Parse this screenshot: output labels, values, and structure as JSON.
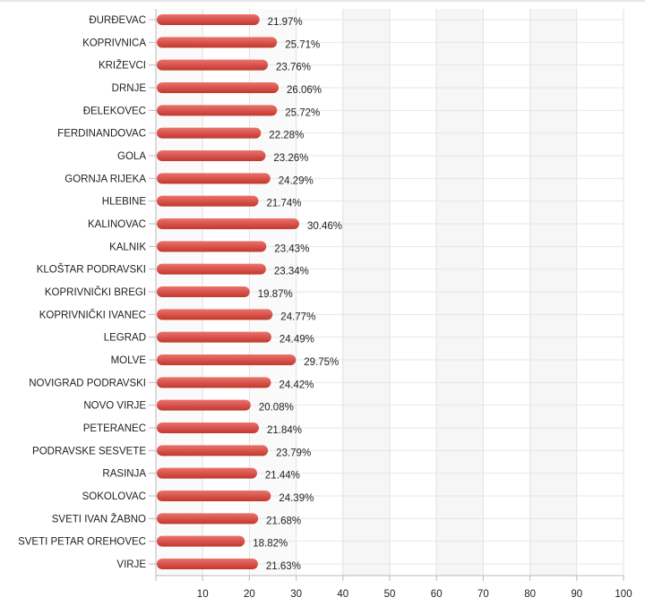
{
  "chart_data": {
    "type": "bar",
    "orientation": "horizontal",
    "categories": [
      "ĐURĐEVAC",
      "KOPRIVNICA",
      "KRIŽEVCI",
      "DRNJE",
      "ĐELEKOVEC",
      "FERDINANDOVAC",
      "GOLA",
      "GORNJA RIJEKA",
      "HLEBINE",
      "KALINOVAC",
      "KALNIK",
      "KLOŠTAR PODRAVSKI",
      "KOPRIVNIČKI BREGI",
      "KOPRIVNIČKI IVANEC",
      "LEGRAD",
      "MOLVE",
      "NOVIGRAD PODRAVSKI",
      "NOVO VIRJE",
      "PETERANEC",
      "PODRAVSKE SESVETE",
      "RASINJA",
      "SOKOLOVAC",
      "SVETI IVAN ŽABNO",
      "SVETI PETAR OREHOVEC",
      "VIRJE"
    ],
    "values": [
      21.97,
      25.71,
      23.76,
      26.06,
      25.72,
      22.28,
      23.26,
      24.29,
      21.74,
      30.46,
      23.43,
      23.34,
      19.87,
      24.77,
      24.49,
      29.75,
      24.42,
      20.08,
      21.84,
      23.79,
      21.44,
      24.39,
      21.68,
      18.82,
      21.63
    ],
    "value_labels": [
      "21.97%",
      "25.71%",
      "23.76%",
      "26.06%",
      "25.72%",
      "22.28%",
      "23.26%",
      "24.29%",
      "21.74%",
      "30.46%",
      "23.43%",
      "23.34%",
      "19.87%",
      "24.77%",
      "24.49%",
      "29.75%",
      "24.42%",
      "20.08%",
      "21.84%",
      "23.79%",
      "21.44%",
      "24.39%",
      "21.68%",
      "18.82%",
      "21.63%"
    ],
    "xlim": [
      0,
      100
    ],
    "x_ticks": [
      "10",
      "20",
      "30",
      "40",
      "50",
      "60",
      "70",
      "80",
      "90",
      "100"
    ],
    "grid": true,
    "bar_color": "#d9534f",
    "title": "",
    "xlabel": "",
    "ylabel": ""
  }
}
